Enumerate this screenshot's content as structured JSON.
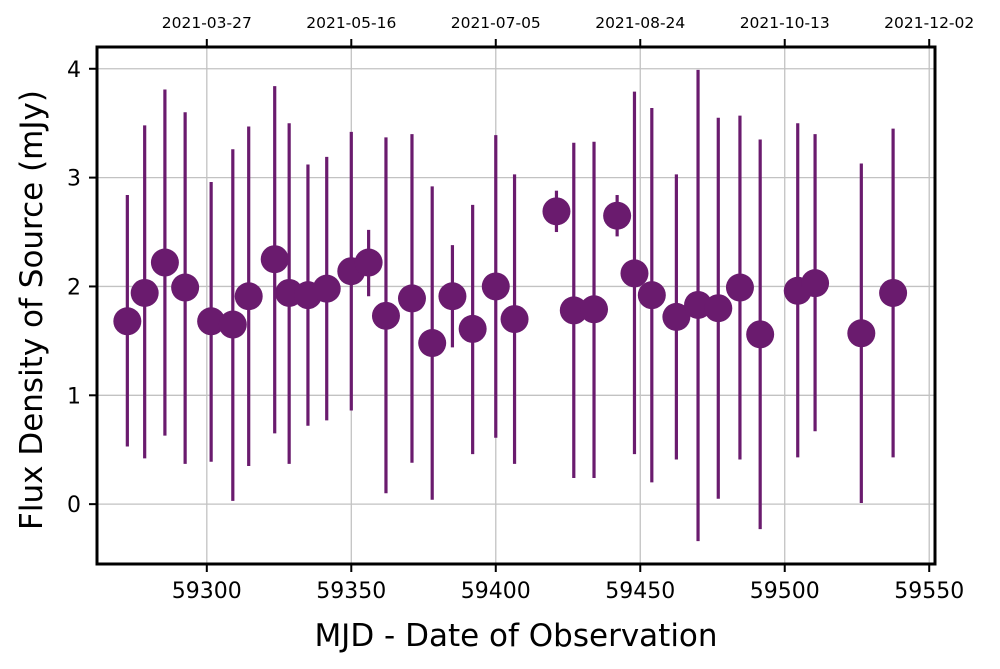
{
  "chart_data": {
    "type": "scatter",
    "xlabel": "MJD - Date of Observation",
    "ylabel": "Flux Density of Source (mJy)",
    "xlim": [
      59262,
      59552
    ],
    "ylim": [
      -0.55,
      4.2
    ],
    "x_ticks": [
      59300,
      59350,
      59400,
      59450,
      59500,
      59550
    ],
    "y_ticks": [
      0,
      1,
      2,
      3,
      4
    ],
    "top_axis": {
      "tick_positions_mjd": [
        59300,
        59350,
        59400,
        59450,
        59500,
        59550
      ],
      "tick_labels": [
        "2021-03-27",
        "2021-05-16",
        "2021-07-05",
        "2021-08-24",
        "2021-10-13",
        "2021-12-02"
      ]
    },
    "grid": true,
    "marker_color": "#6a1b6e",
    "points": [
      {
        "x": 59272.5,
        "y": 1.68,
        "err_lo": 0.53,
        "err_hi": 2.84
      },
      {
        "x": 59278.5,
        "y": 1.94,
        "err_lo": 0.42,
        "err_hi": 3.48
      },
      {
        "x": 59285.5,
        "y": 2.22,
        "err_lo": 0.63,
        "err_hi": 3.81
      },
      {
        "x": 59292.5,
        "y": 1.99,
        "err_lo": 0.37,
        "err_hi": 3.6
      },
      {
        "x": 59301.5,
        "y": 1.68,
        "err_lo": 0.39,
        "err_hi": 2.96
      },
      {
        "x": 59309.0,
        "y": 1.65,
        "err_lo": 0.03,
        "err_hi": 3.26
      },
      {
        "x": 59314.5,
        "y": 1.91,
        "err_lo": 0.35,
        "err_hi": 3.47
      },
      {
        "x": 59323.5,
        "y": 2.25,
        "err_lo": 0.65,
        "err_hi": 3.84
      },
      {
        "x": 59328.5,
        "y": 1.94,
        "err_lo": 0.37,
        "err_hi": 3.5
      },
      {
        "x": 59335.0,
        "y": 1.92,
        "err_lo": 0.72,
        "err_hi": 3.12
      },
      {
        "x": 59341.5,
        "y": 1.98,
        "err_lo": 0.77,
        "err_hi": 3.19
      },
      {
        "x": 59350.0,
        "y": 2.14,
        "err_lo": 0.86,
        "err_hi": 3.42
      },
      {
        "x": 59356.0,
        "y": 2.22,
        "err_lo": 1.91,
        "err_hi": 2.52
      },
      {
        "x": 59362.0,
        "y": 1.73,
        "err_lo": 0.1,
        "err_hi": 3.37
      },
      {
        "x": 59371.0,
        "y": 1.89,
        "err_lo": 0.38,
        "err_hi": 3.4
      },
      {
        "x": 59378.0,
        "y": 1.48,
        "err_lo": 0.04,
        "err_hi": 2.92
      },
      {
        "x": 59385.0,
        "y": 1.91,
        "err_lo": 1.44,
        "err_hi": 2.38
      },
      {
        "x": 59392.0,
        "y": 1.61,
        "err_lo": 0.46,
        "err_hi": 2.75
      },
      {
        "x": 59400.0,
        "y": 2.0,
        "err_lo": 0.61,
        "err_hi": 3.39
      },
      {
        "x": 59406.5,
        "y": 1.7,
        "err_lo": 0.37,
        "err_hi": 3.03
      },
      {
        "x": 59421.0,
        "y": 2.69,
        "err_lo": 2.5,
        "err_hi": 2.88
      },
      {
        "x": 59427.0,
        "y": 1.78,
        "err_lo": 0.24,
        "err_hi": 3.32
      },
      {
        "x": 59434.0,
        "y": 1.79,
        "err_lo": 0.24,
        "err_hi": 3.33
      },
      {
        "x": 59442.0,
        "y": 2.65,
        "err_lo": 2.46,
        "err_hi": 2.84
      },
      {
        "x": 59448.0,
        "y": 2.12,
        "err_lo": 0.46,
        "err_hi": 3.79
      },
      {
        "x": 59454.0,
        "y": 1.92,
        "err_lo": 0.2,
        "err_hi": 3.64
      },
      {
        "x": 59462.5,
        "y": 1.72,
        "err_lo": 0.41,
        "err_hi": 3.03
      },
      {
        "x": 59470.0,
        "y": 1.83,
        "err_lo": -0.34,
        "err_hi": 3.99
      },
      {
        "x": 59477.0,
        "y": 1.8,
        "err_lo": 0.05,
        "err_hi": 3.55
      },
      {
        "x": 59484.5,
        "y": 1.99,
        "err_lo": 0.41,
        "err_hi": 3.57
      },
      {
        "x": 59491.5,
        "y": 1.56,
        "err_lo": -0.23,
        "err_hi": 3.35
      },
      {
        "x": 59504.5,
        "y": 1.96,
        "err_lo": 0.43,
        "err_hi": 3.5
      },
      {
        "x": 59510.5,
        "y": 2.03,
        "err_lo": 0.67,
        "err_hi": 3.4
      },
      {
        "x": 59526.5,
        "y": 1.57,
        "err_lo": 0.01,
        "err_hi": 3.13
      },
      {
        "x": 59537.5,
        "y": 1.94,
        "err_lo": 0.43,
        "err_hi": 3.45
      }
    ]
  }
}
